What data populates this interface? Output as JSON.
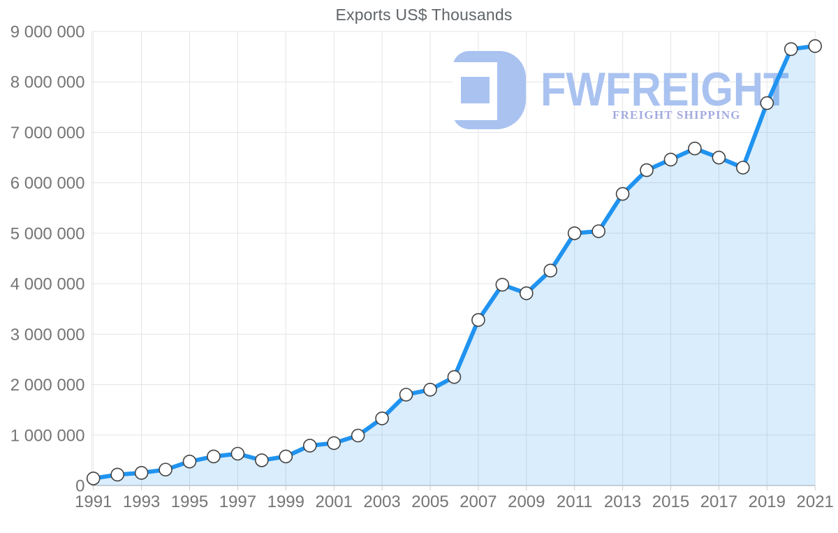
{
  "chart_data": {
    "type": "area",
    "title": "Exports US$ Thousands",
    "xlabel": "",
    "ylabel": "",
    "x": [
      1991,
      1992,
      1993,
      1994,
      1995,
      1996,
      1997,
      1998,
      1999,
      2000,
      2001,
      2002,
      2003,
      2004,
      2005,
      2006,
      2007,
      2008,
      2009,
      2010,
      2011,
      2012,
      2013,
      2014,
      2015,
      2016,
      2017,
      2018,
      2019,
      2020,
      2021
    ],
    "series": [
      {
        "name": "Exports US$ Thousands",
        "values": [
          140000,
          215000,
          250000,
          315000,
          475000,
          575000,
          630000,
          500000,
          575000,
          790000,
          840000,
          990000,
          1330000,
          1800000,
          1900000,
          2150000,
          3280000,
          3980000,
          3810000,
          4260000,
          5000000,
          5040000,
          5780000,
          6250000,
          6460000,
          6680000,
          6500000,
          6300000,
          7580000,
          8650000,
          8710000
        ]
      }
    ],
    "xlim": [
      1991,
      2021
    ],
    "ylim": [
      0,
      9000000
    ],
    "y_ticks": [
      0,
      1000000,
      2000000,
      3000000,
      4000000,
      5000000,
      6000000,
      7000000,
      8000000,
      9000000
    ],
    "y_tick_labels": [
      "0",
      "1 000 000",
      "2 000 000",
      "3 000 000",
      "4 000 000",
      "5 000 000",
      "6 000 000",
      "7 000 000",
      "8 000 000",
      "9 000 000"
    ],
    "x_ticks": [
      1991,
      1993,
      1995,
      1997,
      1999,
      2001,
      2003,
      2005,
      2007,
      2009,
      2011,
      2013,
      2015,
      2017,
      2019,
      2021
    ],
    "x_tick_labels": [
      "1991",
      "1993",
      "1995",
      "1997",
      "1999",
      "2001",
      "2003",
      "2005",
      "2007",
      "2009",
      "2011",
      "2013",
      "2015",
      "2017",
      "2019",
      "2021"
    ],
    "grid": true,
    "legend": "none",
    "colors": {
      "line": "#2093f0",
      "area_fill": "rgba(32,147,240,0.17)",
      "marker_fill": "#ffffff",
      "marker_stroke": "#424242",
      "gridline": "#e4e5e6",
      "axis_line": "#b9c2c9",
      "tick": "#c9cccf",
      "title_text": "#5f6468",
      "axis_text": "#757575"
    }
  },
  "watermark": {
    "brand": "FWFREIGHT",
    "tagline": "FREIGHT SHIPPING",
    "logo_icon": "fwfreight-monogram-icon",
    "brand_color": "#a9c2f0",
    "icon_color": "#a9c2f0",
    "tagline_color": "#a3abdf"
  }
}
